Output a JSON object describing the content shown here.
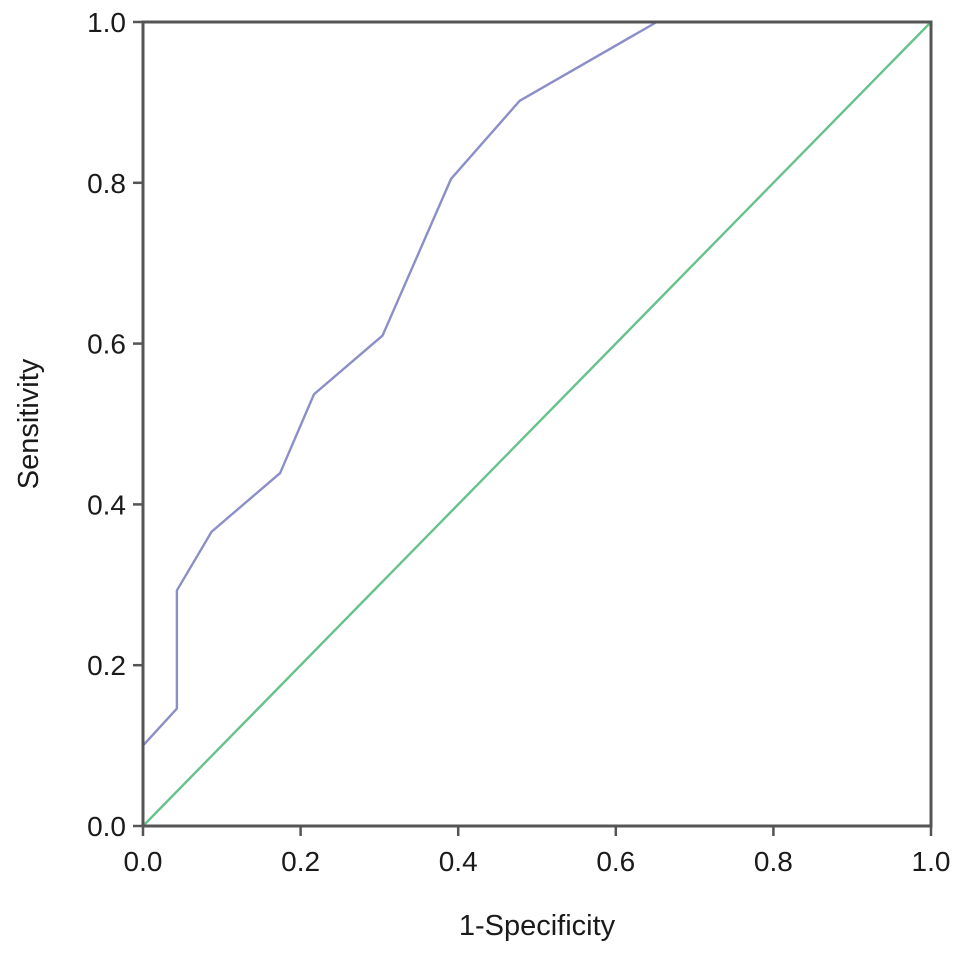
{
  "chart_data": {
    "type": "line",
    "title": "",
    "xlabel": "1-Specificity",
    "ylabel": "Sensitivity",
    "xlim": [
      0,
      1
    ],
    "ylim": [
      0,
      1
    ],
    "x_ticks": [
      "0.0",
      "0.2",
      "0.4",
      "0.6",
      "0.8",
      "1.0"
    ],
    "y_ticks": [
      "0.0",
      "0.2",
      "0.4",
      "0.6",
      "0.8",
      "1.0"
    ],
    "grid": false,
    "series": [
      {
        "color": "#8b8fc8",
        "x": [
          0.0,
          0.0,
          0.043,
          0.043,
          0.087,
          0.174,
          0.217,
          0.304,
          0.391,
          0.478,
          0.652,
          1.0
        ],
        "y": [
          0.0,
          0.1,
          0.146,
          0.293,
          0.366,
          0.439,
          0.537,
          0.61,
          0.805,
          0.902,
          1.0,
          1.0
        ]
      },
      {
        "color": "#66c28a",
        "x": [
          0.0,
          1.0
        ],
        "y": [
          0.0,
          1.0
        ]
      }
    ]
  }
}
